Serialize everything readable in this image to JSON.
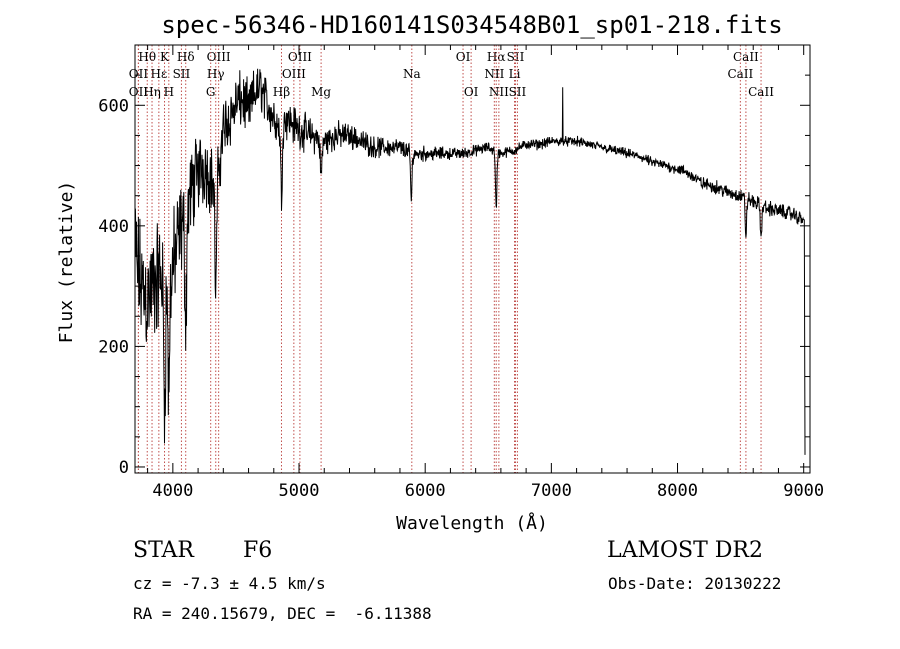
{
  "chart_data": {
    "type": "line",
    "title": "spec-56346-HD160141S034548B01_sp01-218.fits",
    "xlabel": "Wavelength (Å)",
    "ylabel": "Flux (relative)",
    "xlim": [
      3700,
      9050
    ],
    "ylim": [
      -10,
      700
    ],
    "x_ticks": [
      4000,
      5000,
      6000,
      7000,
      8000,
      9000
    ],
    "y_ticks": [
      0,
      200,
      400,
      600
    ],
    "grid": false,
    "line_color": "#000000",
    "marker_color": "#c0504d",
    "spectrum_anchors": {
      "x": [
        3700,
        3750,
        3800,
        3850,
        3900,
        3950,
        4000,
        4050,
        4100,
        4150,
        4200,
        4250,
        4300,
        4350,
        4400,
        4450,
        4500,
        4550,
        4600,
        4650,
        4700,
        4750,
        4800,
        4850,
        4900,
        4950,
        5000,
        5100,
        5200,
        5300,
        5400,
        5500,
        5600,
        5700,
        5800,
        5900,
        6000,
        6100,
        6200,
        6300,
        6400,
        6500,
        6600,
        6700,
        6800,
        6900,
        7000,
        7100,
        7200,
        7300,
        7400,
        7500,
        7600,
        7700,
        7800,
        7900,
        8000,
        8100,
        8200,
        8300,
        8400,
        8500,
        8600,
        8700,
        8800,
        8900,
        9000,
        9010
      ],
      "y": [
        350,
        300,
        280,
        300,
        320,
        310,
        330,
        380,
        420,
        460,
        490,
        500,
        480,
        470,
        560,
        580,
        600,
        610,
        590,
        620,
        630,
        600,
        580,
        560,
        580,
        570,
        560,
        550,
        540,
        550,
        550,
        540,
        530,
        530,
        530,
        520,
        520,
        520,
        520,
        520,
        525,
        530,
        520,
        525,
        535,
        535,
        540,
        540,
        540,
        535,
        530,
        525,
        520,
        515,
        505,
        500,
        495,
        485,
        470,
        465,
        455,
        450,
        440,
        430,
        425,
        420,
        410,
        20
      ]
    },
    "spectrum_noise": {
      "x": [
        3700,
        4000,
        4300,
        4800,
        5400,
        6200,
        7000,
        7800,
        8500,
        9000
      ],
      "amplitude": [
        130,
        110,
        70,
        45,
        25,
        12,
        10,
        10,
        15,
        15
      ]
    },
    "absorption_dips": [
      {
        "x": 3934,
        "depth": 200,
        "width": 10
      },
      {
        "x": 3968,
        "depth": 200,
        "width": 10
      },
      {
        "x": 4102,
        "depth": 170,
        "width": 10
      },
      {
        "x": 4340,
        "depth": 180,
        "width": 10
      },
      {
        "x": 4861,
        "depth": 120,
        "width": 8
      },
      {
        "x": 5175,
        "depth": 60,
        "width": 10
      },
      {
        "x": 5890,
        "depth": 80,
        "width": 8
      },
      {
        "x": 6563,
        "depth": 95,
        "width": 8
      },
      {
        "x": 8542,
        "depth": 60,
        "width": 8
      },
      {
        "x": 8662,
        "depth": 55,
        "width": 8
      }
    ],
    "spikes": [
      {
        "x": 7090,
        "value": 630
      }
    ],
    "line_markers": [
      {
        "label": "Hθ",
        "x": 3797,
        "row": 0
      },
      {
        "label": "OII",
        "x": 3727,
        "row": 1
      },
      {
        "label": "OII",
        "x": 3727,
        "row": 2
      },
      {
        "label": "K",
        "x": 3934,
        "row": 0
      },
      {
        "label": "Hε",
        "x": 3889,
        "row": 1
      },
      {
        "label": "Hη",
        "x": 3835,
        "row": 2
      },
      {
        "label": "H",
        "x": 3968,
        "row": 2
      },
      {
        "label": "SII",
        "x": 4068,
        "row": 1
      },
      {
        "label": "Hδ",
        "x": 4102,
        "row": 0
      },
      {
        "label": "OIII",
        "x": 4363,
        "row": 0
      },
      {
        "label": "Hγ",
        "x": 4340,
        "row": 1
      },
      {
        "label": "G",
        "x": 4300,
        "row": 2
      },
      {
        "label": "Hβ",
        "x": 4861,
        "row": 2
      },
      {
        "label": "OIII",
        "x": 5007,
        "row": 0
      },
      {
        "label": "OIII",
        "x": 4959,
        "row": 1
      },
      {
        "label": "Mg",
        "x": 5175,
        "row": 2
      },
      {
        "label": "Na",
        "x": 5894,
        "row": 1
      },
      {
        "label": "OI",
        "x": 6300,
        "row": 0
      },
      {
        "label": "OI",
        "x": 6364,
        "row": 2
      },
      {
        "label": "Hα",
        "x": 6563,
        "row": 0
      },
      {
        "label": "NII",
        "x": 6548,
        "row": 1
      },
      {
        "label": "NII",
        "x": 6584,
        "row": 2
      },
      {
        "label": "SII",
        "x": 6716,
        "row": 0
      },
      {
        "label": "Li",
        "x": 6708,
        "row": 1
      },
      {
        "label": "SII",
        "x": 6731,
        "row": 2
      },
      {
        "label": "CaII",
        "x": 8542,
        "row": 0
      },
      {
        "label": "CaII",
        "x": 8498,
        "row": 1
      },
      {
        "label": "CaII",
        "x": 8662,
        "row": 2
      }
    ]
  },
  "info": {
    "object_class": "STAR",
    "subclass": "F6",
    "cz": "cz = -7.3 ± 4.5 km/s",
    "radec": "RA = 240.15679, DEC =  -6.11388",
    "survey": "LAMOST DR2",
    "obs_date": "Obs-Date: 20130222"
  }
}
